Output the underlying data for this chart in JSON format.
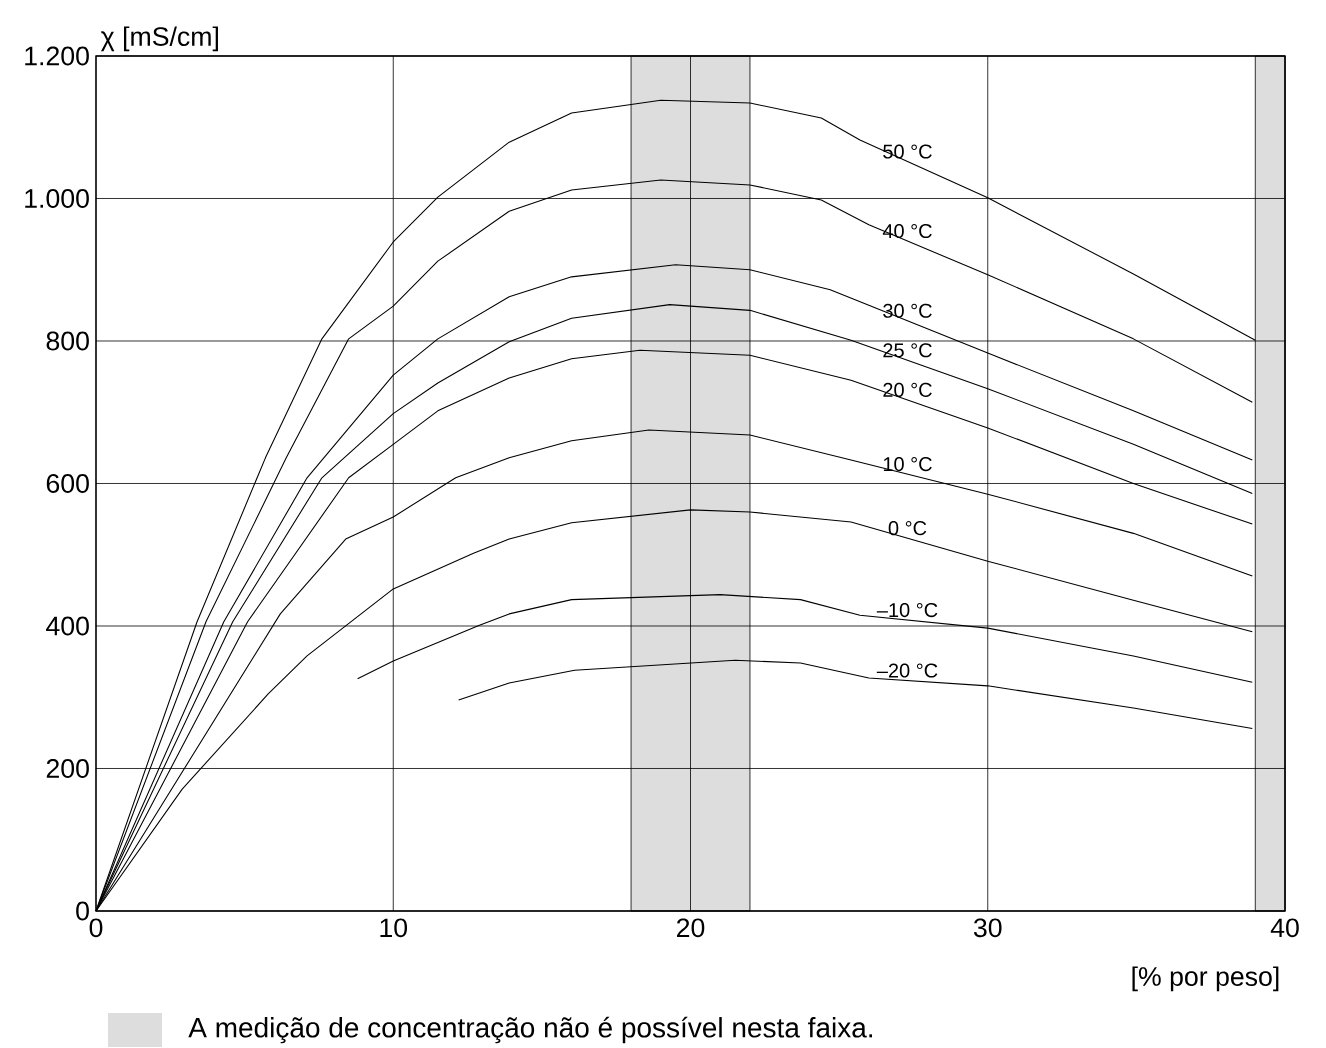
{
  "chart_data": {
    "type": "line",
    "xlabel": "[% por peso]",
    "ylabel": "χ  [mS/cm]",
    "xlim": [
      0,
      40
    ],
    "ylim": [
      0,
      1200
    ],
    "xticks": [
      0,
      10,
      20,
      30,
      40
    ],
    "yticks": [
      0,
      200,
      400,
      600,
      800,
      {
        "value": 1000,
        "label": "1.000"
      },
      {
        "value": 1200,
        "label": "1.200"
      }
    ],
    "grid": true,
    "marker": "none",
    "line_style": "solid",
    "bands": [
      {
        "axis": "x",
        "from": 18,
        "to": 22,
        "color": "#dddddd",
        "label": "A medição de concentração não é possível nesta faixa."
      },
      {
        "axis": "x",
        "from": 39,
        "to": 40,
        "color": "#dddddd"
      }
    ],
    "series": [
      {
        "name": "50 °C",
        "color": "#000000",
        "x": [
          0,
          3.4,
          5.7,
          7.6,
          10,
          11.5,
          13.9,
          16,
          19,
          22,
          24.4,
          25.7,
          30,
          34.9,
          39
        ],
        "values": [
          0,
          406,
          636,
          803,
          939,
          1002,
          1079,
          1120,
          1138,
          1134,
          1113,
          1082,
          1001,
          894,
          801
        ]
      },
      {
        "name": "40 °C",
        "color": "#000000",
        "x": [
          0,
          3.7,
          6.4,
          8.5,
          10,
          11.5,
          13.9,
          16,
          19,
          22,
          24.4,
          26,
          30,
          34.9,
          38.9
        ],
        "values": [
          0,
          406,
          636,
          803,
          849,
          912,
          982,
          1012,
          1026,
          1019,
          998,
          963,
          893,
          803,
          714
        ]
      },
      {
        "name": "30 °C",
        "color": "#000000",
        "x": [
          0,
          4.3,
          7.1,
          10,
          11.5,
          13.9,
          16,
          19.5,
          22,
          24.7,
          30,
          34.9,
          38.9
        ],
        "values": [
          0,
          406,
          608,
          752,
          803,
          862,
          890,
          907,
          900,
          872,
          783,
          702,
          633
        ]
      },
      {
        "name": "25 °C",
        "color": "#000000",
        "x": [
          0,
          4.6,
          7.6,
          10,
          11.5,
          13.9,
          16,
          19.3,
          22,
          25.4,
          30,
          34.9,
          38.9
        ],
        "values": [
          0,
          406,
          608,
          698,
          741,
          799,
          832,
          851,
          843,
          801,
          733,
          655,
          586
        ]
      },
      {
        "name": "20 °C",
        "color": "#000000",
        "x": [
          0,
          5.1,
          8.5,
          10,
          11.5,
          13.9,
          16,
          18.3,
          22,
          25.4,
          30,
          34.9,
          38.9
        ],
        "values": [
          0,
          406,
          608,
          655,
          702,
          748,
          775,
          787,
          780,
          745,
          678,
          600,
          543
        ]
      },
      {
        "name": "10 °C",
        "color": "#000000",
        "x": [
          0,
          6.2,
          8.4,
          10,
          12.1,
          13.9,
          16,
          18.6,
          22,
          25.4,
          30,
          34.9,
          38.9
        ],
        "values": [
          0,
          417,
          522,
          553,
          608,
          636,
          660,
          675,
          668,
          633,
          585,
          530,
          470
        ]
      },
      {
        "name": "0 °C",
        "color": "#000000",
        "x": [
          0,
          2.9,
          5.8,
          7.1,
          10,
          12.7,
          13.9,
          16,
          20,
          22,
          25.4,
          30,
          34.9,
          38.9
        ],
        "values": [
          0,
          171,
          305,
          358,
          452,
          502,
          522,
          545,
          563,
          560,
          546,
          491,
          436,
          392
        ]
      },
      {
        "name": "–10 °C",
        "color": "#000000",
        "x": [
          8.8,
          10,
          12.9,
          13.9,
          16,
          21,
          23.7,
          25.7,
          30,
          34.9,
          38.9
        ],
        "values": [
          326,
          351,
          401,
          417,
          437,
          444,
          437,
          415,
          397,
          358,
          321
        ]
      },
      {
        "name": "–20 °C",
        "color": "#000000",
        "x": [
          12.2,
          13.9,
          16.1,
          21.5,
          23.7,
          26,
          30,
          34.9,
          38.9
        ],
        "values": [
          296,
          320,
          338,
          352,
          348,
          327,
          316,
          285,
          256
        ]
      }
    ]
  }
}
